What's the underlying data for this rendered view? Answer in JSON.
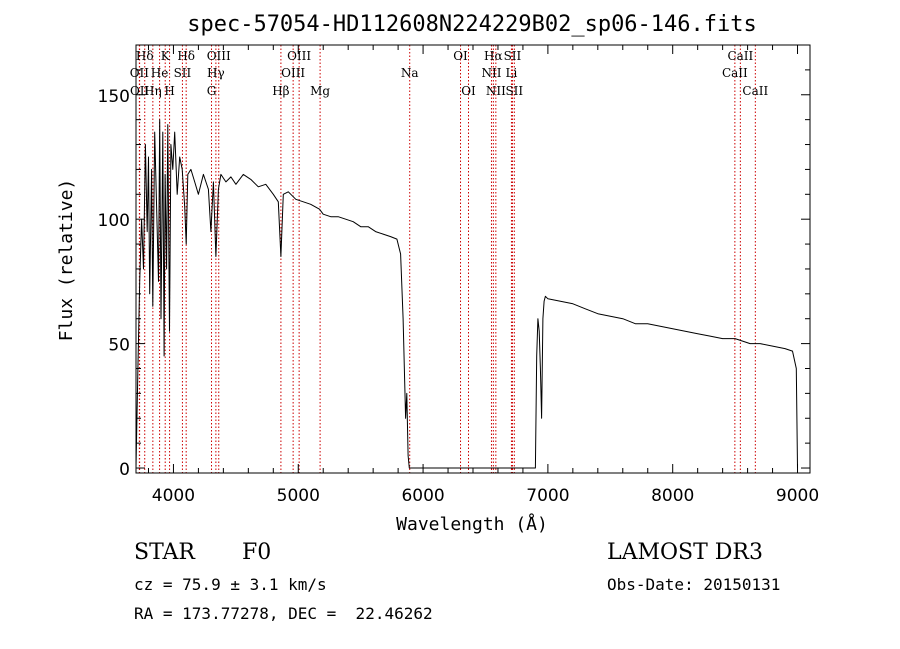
{
  "chart_data": {
    "type": "line",
    "title": "spec-57054-HD112608N224229B02_sp06-146.fits",
    "xlabel": "Wavelength (Å)",
    "ylabel": "Flux (relative)",
    "xlim": [
      3700,
      9100
    ],
    "ylim": [
      -2,
      170
    ],
    "xticks": [
      4000,
      5000,
      6000,
      7000,
      8000,
      9000
    ],
    "yticks": [
      0,
      50,
      100,
      150
    ],
    "series": [
      {
        "name": "flux",
        "x": [
          3700,
          3715,
          3730,
          3745,
          3760,
          3775,
          3790,
          3800,
          3810,
          3825,
          3835,
          3850,
          3865,
          3880,
          3890,
          3900,
          3915,
          3925,
          3933,
          3945,
          3955,
          3968,
          3980,
          3995,
          4010,
          4030,
          4050,
          4070,
          4090,
          4102,
          4115,
          4140,
          4170,
          4200,
          4240,
          4280,
          4300,
          4320,
          4340,
          4360,
          4380,
          4420,
          4460,
          4500,
          4560,
          4620,
          4680,
          4740,
          4800,
          4840,
          4861,
          4880,
          4920,
          4980,
          5040,
          5100,
          5170,
          5200,
          5260,
          5320,
          5380,
          5440,
          5500,
          5560,
          5620,
          5680,
          5740,
          5790,
          5820,
          5840,
          5860,
          5870,
          5880,
          5890,
          5900,
          6900,
          6910,
          6920,
          6930,
          6940,
          6950,
          6960,
          6970,
          6980,
          7000,
          7100,
          7200,
          7300,
          7400,
          7500,
          7600,
          7700,
          7800,
          7900,
          8000,
          8100,
          8200,
          8300,
          8400,
          8500,
          8560,
          8620,
          8700,
          8800,
          8900,
          8960,
          8990,
          9000
        ],
        "values": [
          0,
          40,
          75,
          100,
          80,
          130,
          95,
          125,
          70,
          120,
          65,
          135,
          105,
          75,
          140,
          60,
          135,
          45,
          118,
          80,
          138,
          55,
          130,
          120,
          135,
          110,
          125,
          120,
          105,
          90,
          118,
          120,
          115,
          110,
          118,
          112,
          95,
          115,
          85,
          112,
          118,
          115,
          117,
          114,
          118,
          116,
          113,
          114,
          110,
          107,
          85,
          110,
          111,
          108,
          107,
          106,
          104,
          102,
          101,
          101,
          100,
          99,
          97,
          97,
          95,
          94,
          93,
          92,
          86,
          60,
          20,
          30,
          5,
          0,
          0,
          0,
          45,
          60,
          55,
          40,
          20,
          60,
          67,
          69,
          68,
          67,
          66,
          64,
          62,
          61,
          60,
          58,
          58,
          57,
          56,
          55,
          54,
          53,
          52,
          52,
          51,
          50,
          50,
          49,
          48,
          47,
          40,
          0
        ]
      }
    ],
    "lines_dotted_color": "#cc0000",
    "spectral_lines": [
      {
        "label": "Hδ",
        "wave": 3770,
        "row": 1
      },
      {
        "label": "OII",
        "wave": 3727,
        "row": 2
      },
      {
        "label": "OII",
        "wave": 3729,
        "row": 3
      },
      {
        "label": "K",
        "wave": 3934,
        "row": 1
      },
      {
        "label": "He",
        "wave": 3889,
        "row": 2
      },
      {
        "label": "Hη",
        "wave": 3835,
        "row": 3
      },
      {
        "label": "H",
        "wave": 3969,
        "row": 3
      },
      {
        "label": "Hδ",
        "wave": 4102,
        "row": 1
      },
      {
        "label": "SII",
        "wave": 4072,
        "row": 2
      },
      {
        "label": "OIII",
        "wave": 4363,
        "row": 1
      },
      {
        "label": "Hγ",
        "wave": 4340,
        "row": 2
      },
      {
        "label": "G",
        "wave": 4305,
        "row": 3
      },
      {
        "label": "Hβ",
        "wave": 4861,
        "row": 3
      },
      {
        "label": "OIII",
        "wave": 5007,
        "row": 1
      },
      {
        "label": "OIII",
        "wave": 4959,
        "row": 2
      },
      {
        "label": "Mg",
        "wave": 5175,
        "row": 3
      },
      {
        "label": "Na",
        "wave": 5893,
        "row": 2
      },
      {
        "label": "OI",
        "wave": 6300,
        "row": 1
      },
      {
        "label": "OI",
        "wave": 6364,
        "row": 3
      },
      {
        "label": "Hα",
        "wave": 6563,
        "row": 1
      },
      {
        "label": "NII",
        "wave": 6548,
        "row": 2
      },
      {
        "label": "NII",
        "wave": 6583,
        "row": 3
      },
      {
        "label": "SII",
        "wave": 6716,
        "row": 1
      },
      {
        "label": "Li",
        "wave": 6708,
        "row": 2
      },
      {
        "label": "SII",
        "wave": 6731,
        "row": 3
      },
      {
        "label": "CaII",
        "wave": 8542,
        "row": 1
      },
      {
        "label": "CaII",
        "wave": 8498,
        "row": 2
      },
      {
        "label": "CaII",
        "wave": 8662,
        "row": 3
      }
    ]
  },
  "info": {
    "class": "STAR",
    "subclass": "F0",
    "survey": "LAMOST DR3",
    "cz": "cz = 75.9 ± 3.1 km/s",
    "obs_date": "Obs-Date: 20150131",
    "radec": "RA = 173.77278, DEC =  22.46262"
  }
}
